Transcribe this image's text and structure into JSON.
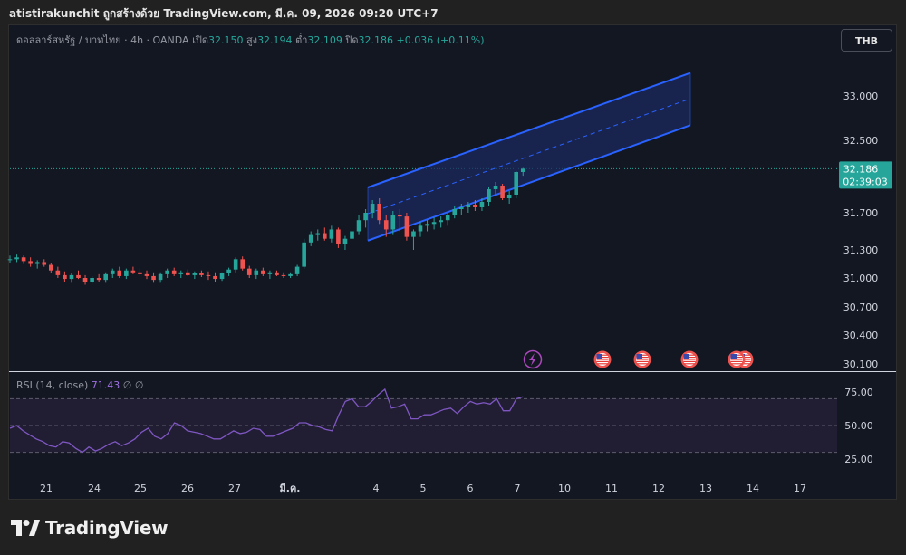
{
  "header": {
    "attribution": "atistirakunchit ถูกสร้างด้วย TradingView.com, มี.ค. 09, 2026 09:20 UTC+7"
  },
  "legend": {
    "symbol": "ดอลลาร์สหรัฐ / บาทไทย · 4h · OANDA",
    "open_label": "เปิด",
    "open": "32.150",
    "high_label": "สูง",
    "high": "32.194",
    "low_label": "ต่ำ",
    "low": "32.109",
    "close_label": "ปิด",
    "close": "32.186",
    "change": "+0.036 (+0.11%)"
  },
  "currency_button": "THB",
  "price_label": {
    "price": "32.186",
    "countdown": "02:39:03"
  },
  "rsi_legend": {
    "name": "RSI (14, close)",
    "value": "71.43",
    "extra": "∅ ∅"
  },
  "footer": {
    "brand": "TradingView"
  },
  "colors": {
    "up": "#26a69a",
    "down": "#ef5350",
    "channel": "#2962ff",
    "channel_fill": "#1c2a5e",
    "rsi": "#7e57c2",
    "rsi_band": "#211d33"
  },
  "chart_data": [
    {
      "type": "candlestick",
      "title": "USD/THB 4h OANDA",
      "y_ticks": [
        "33.000",
        "32.500",
        "31.700",
        "31.300",
        "31.000",
        "30.700",
        "30.400",
        "30.100"
      ],
      "x_ticks": [
        "21",
        "24",
        "25",
        "26",
        "27",
        "มี.ค.",
        "4",
        "5",
        "6",
        "7",
        "10",
        "11",
        "12",
        "13",
        "14",
        "17"
      ],
      "last_price": 32.186,
      "candles": [
        [
          31.2,
          31.24,
          31.16,
          31.2
        ],
        [
          31.2,
          31.25,
          31.17,
          31.22
        ],
        [
          31.22,
          31.24,
          31.15,
          31.18
        ],
        [
          31.18,
          31.22,
          31.12,
          31.15
        ],
        [
          31.15,
          31.19,
          31.1,
          31.17
        ],
        [
          31.17,
          31.2,
          31.12,
          31.14
        ],
        [
          31.14,
          31.16,
          31.05,
          31.08
        ],
        [
          31.08,
          31.12,
          31.0,
          31.03
        ],
        [
          31.03,
          31.07,
          30.96,
          30.99
        ],
        [
          30.99,
          31.05,
          30.95,
          31.03
        ],
        [
          31.03,
          31.08,
          30.99,
          31.0
        ],
        [
          31.0,
          31.03,
          30.93,
          30.96
        ],
        [
          30.96,
          31.02,
          30.94,
          31.0
        ],
        [
          31.0,
          31.04,
          30.96,
          30.98
        ],
        [
          30.98,
          31.06,
          30.95,
          31.04
        ],
        [
          31.04,
          31.1,
          31.0,
          31.08
        ],
        [
          31.08,
          31.12,
          31.0,
          31.02
        ],
        [
          31.02,
          31.1,
          30.99,
          31.08
        ],
        [
          31.08,
          31.12,
          31.04,
          31.06
        ],
        [
          31.06,
          31.1,
          31.02,
          31.04
        ],
        [
          31.04,
          31.08,
          30.99,
          31.02
        ],
        [
          31.02,
          31.06,
          30.95,
          30.98
        ],
        [
          30.98,
          31.06,
          30.95,
          31.04
        ],
        [
          31.04,
          31.1,
          31.0,
          31.08
        ],
        [
          31.08,
          31.11,
          31.02,
          31.04
        ],
        [
          31.04,
          31.08,
          31.0,
          31.06
        ],
        [
          31.06,
          31.09,
          31.02,
          31.03
        ],
        [
          31.03,
          31.07,
          30.99,
          31.05
        ],
        [
          31.05,
          31.08,
          31.01,
          31.03
        ],
        [
          31.03,
          31.07,
          30.98,
          31.02
        ],
        [
          31.02,
          31.06,
          30.96,
          30.99
        ],
        [
          30.99,
          31.06,
          30.97,
          31.05
        ],
        [
          31.05,
          31.11,
          31.02,
          31.09
        ],
        [
          31.09,
          31.22,
          31.06,
          31.2
        ],
        [
          31.2,
          31.23,
          31.08,
          31.1
        ],
        [
          31.1,
          31.13,
          31.0,
          31.03
        ],
        [
          31.03,
          31.1,
          30.99,
          31.08
        ],
        [
          31.08,
          31.11,
          31.02,
          31.04
        ],
        [
          31.04,
          31.08,
          30.99,
          31.06
        ],
        [
          31.06,
          31.08,
          31.02,
          31.03
        ],
        [
          31.03,
          31.06,
          31.0,
          31.02
        ],
        [
          31.02,
          31.06,
          31.0,
          31.04
        ],
        [
          31.04,
          31.14,
          31.02,
          31.12
        ],
        [
          31.12,
          31.42,
          31.1,
          31.38
        ],
        [
          31.38,
          31.5,
          31.34,
          31.46
        ],
        [
          31.46,
          31.52,
          31.4,
          31.48
        ],
        [
          31.48,
          31.54,
          31.4,
          31.42
        ],
        [
          31.42,
          31.56,
          31.38,
          31.52
        ],
        [
          31.52,
          31.54,
          31.32,
          31.36
        ],
        [
          31.36,
          31.45,
          31.3,
          31.42
        ],
        [
          31.42,
          31.55,
          31.38,
          31.5
        ],
        [
          31.5,
          31.68,
          31.46,
          31.62
        ],
        [
          31.62,
          31.74,
          31.54,
          31.7
        ],
        [
          31.7,
          31.84,
          31.64,
          31.8
        ],
        [
          31.8,
          31.86,
          31.58,
          31.62
        ],
        [
          31.62,
          31.68,
          31.44,
          31.52
        ],
        [
          31.52,
          31.72,
          31.46,
          31.68
        ],
        [
          31.68,
          31.74,
          31.5,
          31.66
        ],
        [
          31.66,
          31.7,
          31.4,
          31.44
        ],
        [
          31.44,
          31.52,
          31.3,
          31.5
        ],
        [
          31.5,
          31.6,
          31.44,
          31.56
        ],
        [
          31.56,
          31.62,
          31.5,
          31.58
        ],
        [
          31.58,
          31.65,
          31.52,
          31.6
        ],
        [
          31.6,
          31.66,
          31.54,
          31.62
        ],
        [
          31.62,
          31.7,
          31.56,
          31.68
        ],
        [
          31.68,
          31.78,
          31.64,
          31.74
        ],
        [
          31.74,
          31.8,
          31.68,
          31.76
        ],
        [
          31.76,
          31.82,
          31.7,
          31.79
        ],
        [
          31.79,
          31.84,
          31.72,
          31.76
        ],
        [
          31.76,
          31.86,
          31.72,
          31.82
        ],
        [
          31.82,
          31.98,
          31.78,
          31.96
        ],
        [
          31.96,
          32.04,
          31.9,
          32.0
        ],
        [
          32.0,
          32.02,
          31.84,
          31.86
        ],
        [
          31.86,
          31.94,
          31.8,
          31.9
        ],
        [
          31.9,
          32.16,
          31.86,
          32.15
        ],
        [
          32.15,
          32.194,
          32.109,
          32.186
        ]
      ],
      "channel": {
        "upper": [
          31.98,
          33.26
        ],
        "mid": [
          31.69,
          32.97
        ],
        "lower": [
          31.4,
          32.67
        ]
      }
    },
    {
      "type": "line",
      "title": "RSI (14, close)",
      "y_ticks": [
        "75.00",
        "50.00",
        "25.00"
      ],
      "ylim": [
        15,
        85
      ],
      "band": [
        30,
        70
      ],
      "values": [
        48,
        50,
        46,
        43,
        40,
        38,
        35,
        34,
        38,
        37,
        33,
        30,
        34,
        31,
        33,
        36,
        38,
        35,
        37,
        40,
        45,
        48,
        42,
        40,
        44,
        52,
        50,
        46,
        45,
        44,
        42,
        40,
        40,
        43,
        46,
        44,
        45,
        48,
        47,
        42,
        42,
        44,
        46,
        48,
        52,
        52,
        50,
        49,
        47,
        46,
        58,
        68,
        70,
        64,
        64,
        68,
        73,
        77,
        63,
        64,
        66,
        55,
        55,
        58,
        58,
        60,
        62,
        63,
        59,
        64,
        68,
        66,
        67,
        66,
        70,
        61,
        61,
        70,
        71.43
      ]
    }
  ]
}
